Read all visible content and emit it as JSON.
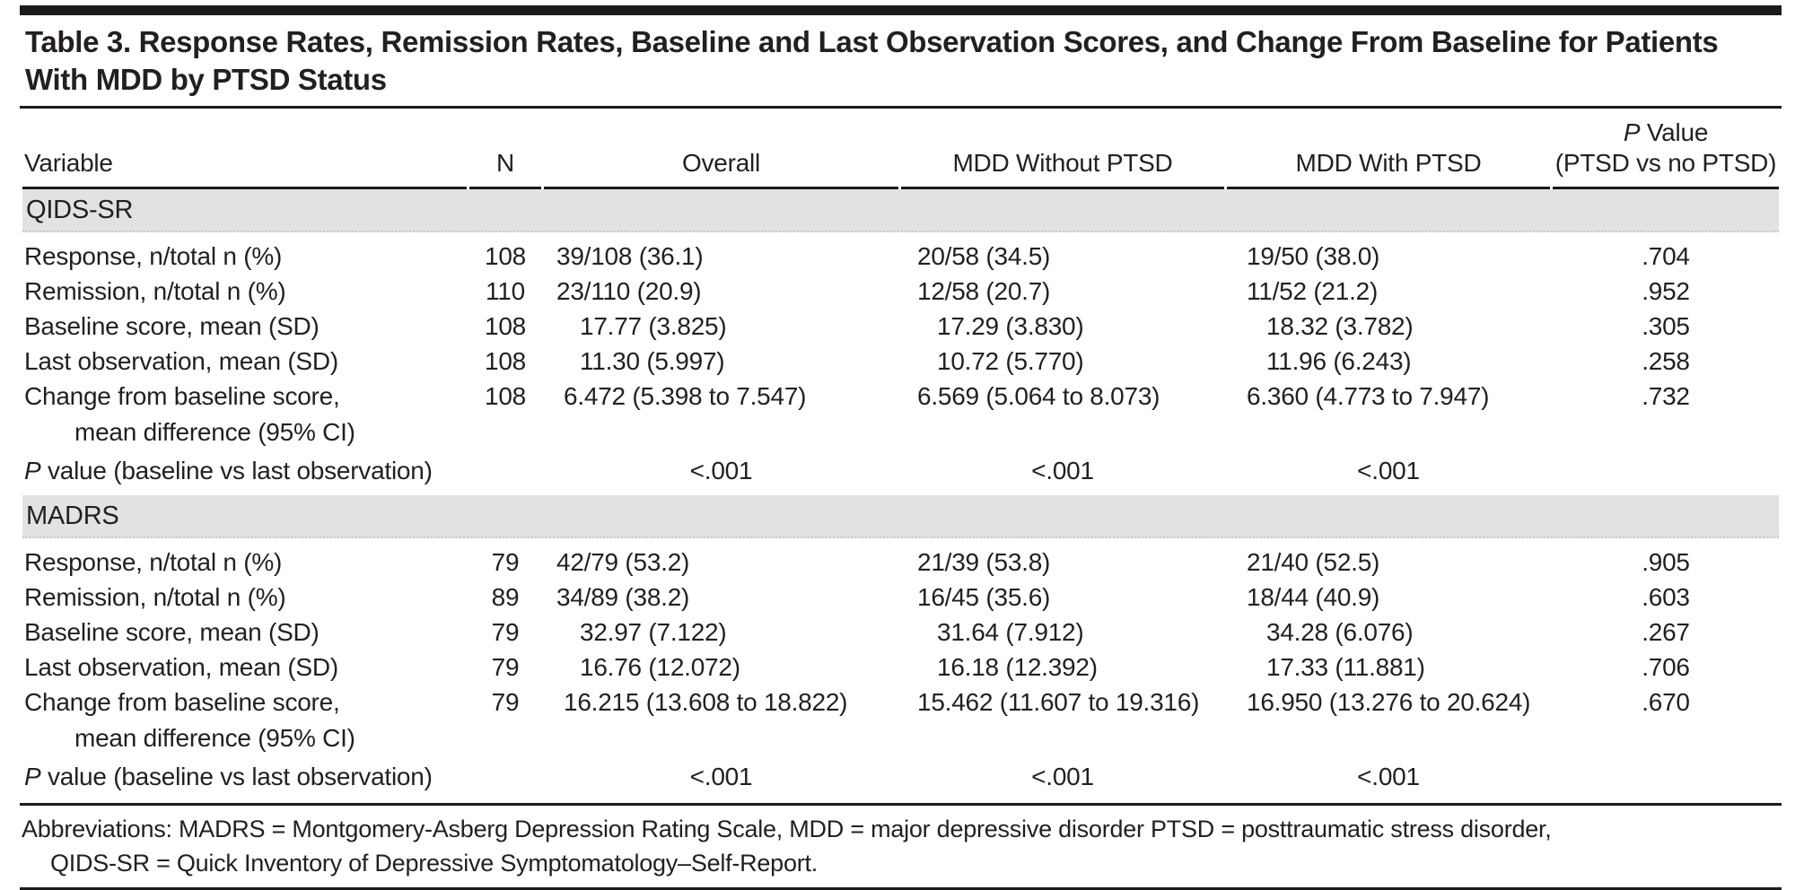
{
  "table": {
    "title_line1": "Table 3. Response Rates, Remission Rates, Baseline and Last Observation Scores, and Change From Baseline for Patients",
    "title_line2": "With MDD by PTSD Status",
    "columns": {
      "variable": "Variable",
      "n": "N",
      "overall": "Overall",
      "without": "MDD Without PTSD",
      "with": "MDD With PTSD",
      "pvalue_italic": "P",
      "pvalue_rest": " Value",
      "pvalue_line2": "(PTSD vs no PTSD)"
    },
    "sections": [
      {
        "name": "QIDS-SR",
        "rows": [
          {
            "kind": "count",
            "label": "Response, n/total n (%)",
            "n": "108",
            "overall": "39/108 (36.1)",
            "without": "20/58 (34.5)",
            "with": "19/50 (38.0)",
            "p": ".704"
          },
          {
            "kind": "count",
            "label": "Remission, n/total n (%)",
            "n": "110",
            "overall": "23/110 (20.9)",
            "without": "12/58 (20.7)",
            "with": "11/52 (21.2)",
            "p": ".952"
          },
          {
            "kind": "mean",
            "label": "Baseline score, mean (SD)",
            "n": "108",
            "overall": "17.77 (3.825)",
            "without": "17.29 (3.830)",
            "with": "18.32 (3.782)",
            "p": ".305"
          },
          {
            "kind": "mean",
            "label": "Last observation, mean (SD)",
            "n": "108",
            "overall": "11.30 (5.997)",
            "without": "10.72 (5.770)",
            "with": "11.96 (6.243)",
            "p": ".258"
          },
          {
            "kind": "change",
            "label": "Change from baseline score,",
            "label2": "mean difference (95% CI)",
            "n": "108",
            "overall": "6.472 (5.398 to 7.547)",
            "without": "6.569 (5.064 to 8.073)",
            "with": "6.360 (4.773 to 7.947)",
            "p": ".732"
          },
          {
            "kind": "pvalue",
            "label_italic": "P",
            "label": " value (baseline vs last observation)",
            "n": "",
            "overall": "<.001",
            "without": "<.001",
            "with": "<.001",
            "p": ""
          }
        ]
      },
      {
        "name": "MADRS",
        "rows": [
          {
            "kind": "count",
            "label": "Response, n/total n (%)",
            "n": "79",
            "overall": "42/79 (53.2)",
            "without": "21/39 (53.8)",
            "with": "21/40 (52.5)",
            "p": ".905"
          },
          {
            "kind": "count",
            "label": "Remission, n/total n (%)",
            "n": "89",
            "overall": "34/89 (38.2)",
            "without": "16/45 (35.6)",
            "with": "18/44 (40.9)",
            "p": ".603"
          },
          {
            "kind": "mean",
            "label": "Baseline score, mean (SD)",
            "n": "79",
            "overall": "32.97 (7.122)",
            "without": "31.64 (7.912)",
            "with": "34.28 (6.076)",
            "p": ".267"
          },
          {
            "kind": "mean",
            "label": "Last observation, mean (SD)",
            "n": "79",
            "overall": "16.76 (12.072)",
            "without": "16.18 (12.392)",
            "with": "17.33 (11.881)",
            "p": ".706"
          },
          {
            "kind": "change",
            "label": "Change from baseline score,",
            "label2": "mean difference (95% CI)",
            "n": "79",
            "overall": "16.215 (13.608 to 18.822)",
            "without": "15.462 (11.607 to 19.316)",
            "with": "16.950 (13.276 to 20.624)",
            "p": ".670"
          },
          {
            "kind": "pvalue",
            "label_italic": "P",
            "label": " value (baseline vs last observation)",
            "n": "",
            "overall": "<.001",
            "without": "<.001",
            "with": "<.001",
            "p": ""
          }
        ]
      }
    ],
    "footnote_line1": "Abbreviations: MADRS = Montgomery-Asberg Depression Rating Scale, MDD = major depressive disorder PTSD = posttraumatic stress disorder,",
    "footnote_line2": "QIDS-SR = Quick Inventory of Depressive Symptomatology–Self-Report."
  }
}
